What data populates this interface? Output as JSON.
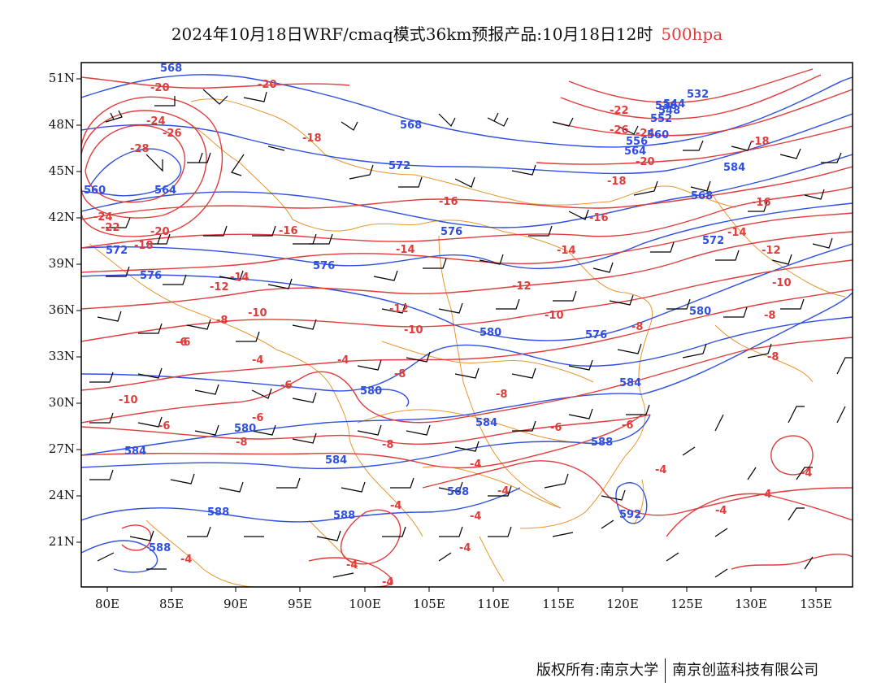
{
  "title": {
    "text": "2024年10月18日WRF/cmaq模式36km预报产品:10月18日12时",
    "level": "500hpa"
  },
  "axes": {
    "lat_labels": [
      "51N",
      "48N",
      "45N",
      "42N",
      "39N",
      "36N",
      "33N",
      "30N",
      "27N",
      "24N",
      "21N"
    ],
    "lon_labels": [
      "80E",
      "85E",
      "90E",
      "95E",
      "100E",
      "105E",
      "110E",
      "115E",
      "120E",
      "125E",
      "130E",
      "135E"
    ]
  },
  "colors": {
    "temperature_contour": "#e03c3c",
    "height_contour": "#2f4fe0",
    "boundary": "#e8962e",
    "wind_barb": "#000000"
  },
  "temperature_labels": [
    "-20",
    "-20",
    "-24",
    "-26",
    "-28",
    "-24",
    "-22",
    "-20",
    "-18",
    "-18",
    "-16",
    "-16",
    "-14",
    "-14",
    "-12",
    "-12",
    "-10",
    "-10",
    "-8",
    "-8",
    "-6",
    "-6",
    "-4",
    "-4",
    "-6",
    "-8",
    "-10",
    "-6",
    "-8",
    "-8",
    "-6",
    "-4",
    "-4",
    "-4",
    "-4",
    "-4",
    "-4",
    "-4",
    "-4",
    "-4",
    "-4",
    "-6",
    "-8",
    "-10",
    "-12",
    "-14",
    "-16",
    "-18",
    "-20",
    "-22",
    "-24",
    "-26",
    "-18",
    "-16",
    "-14",
    "-12",
    "-10",
    "-8",
    "-8",
    "-6",
    "-4",
    "-4"
  ],
  "height_labels": [
    "568",
    "568",
    "572",
    "560",
    "564",
    "568",
    "572",
    "576",
    "576",
    "576",
    "580",
    "580",
    "580",
    "584",
    "584",
    "584",
    "584",
    "588",
    "588",
    "588",
    "588",
    "592",
    "584",
    "580",
    "576",
    "572",
    "568",
    "564",
    "560",
    "556",
    "552",
    "548",
    "544",
    "536",
    "532"
  ],
  "footer": {
    "left": "版权所有:南京大学",
    "right": "南京创蓝科技有限公司"
  }
}
